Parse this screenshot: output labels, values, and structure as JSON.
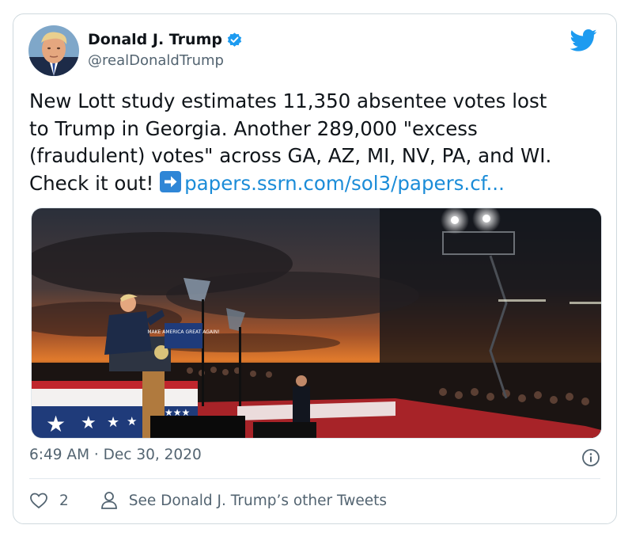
{
  "tweet": {
    "author_name": "Donald J. Trump",
    "author_handle": "@realDonaldTrump",
    "text_main": "New Lott study estimates 11,350 absentee votes lost\nto Trump in Georgia. Another 289,000 \"excess\n(fraudulent) votes\" across GA, AZ, MI, NV, PA, and WI.\nCheck it out! ",
    "link_text": "papers.ssrn.com/sol3/papers.cf...",
    "timestamp": "6:49 AM · Dec 30, 2020",
    "like_count": "2",
    "other_tweets_label": "See Donald J. Trump’s other Tweets",
    "media_sign_text": "MAKE AMERICA GREAT AGAIN!"
  },
  "icons": {
    "verified": "verified-badge-icon",
    "brand": "twitter-bird-icon",
    "arrow": "right-arrow-emoji-icon",
    "info": "info-icon",
    "like": "heart-icon",
    "profile": "person-icon"
  },
  "colors": {
    "link": "#1b8cd8",
    "twitter_blue": "#1d9bf0",
    "muted": "#536471",
    "border": "#cfd9de"
  }
}
